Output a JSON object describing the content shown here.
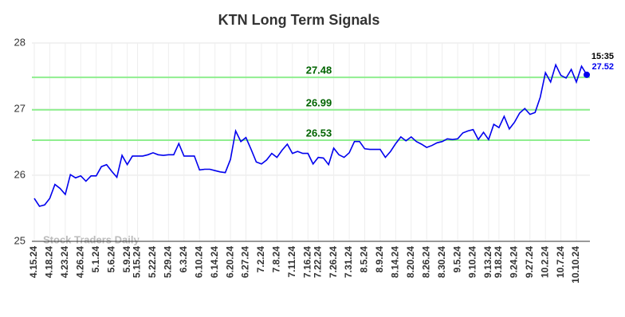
{
  "chart_data": {
    "type": "line",
    "title": "KTN Long Term Signals",
    "watermark": "Stock Traders Daily",
    "categories": [
      "4.15.24",
      null,
      null,
      "4.18.24",
      null,
      null,
      "4.23.24",
      null,
      null,
      "4.26.24",
      null,
      null,
      "5.1.24",
      null,
      null,
      "5.6.24",
      null,
      null,
      "5.9.24",
      null,
      "5.15.24",
      null,
      null,
      "5.22.24",
      null,
      null,
      "5.29.24",
      null,
      null,
      "6.3.24",
      null,
      null,
      "6.10.24",
      null,
      null,
      "6.14.24",
      null,
      null,
      "6.20.24",
      null,
      null,
      "6.27.24",
      null,
      null,
      "7.2.24",
      null,
      null,
      "7.8.24",
      null,
      null,
      "7.11.24",
      null,
      null,
      "7.16.24",
      null,
      "7.22.24",
      null,
      null,
      "7.26.24",
      null,
      null,
      "7.31.24",
      null,
      null,
      "8.5.24",
      null,
      null,
      "8.9.24",
      null,
      null,
      "8.14.24",
      null,
      null,
      "8.20.24",
      null,
      null,
      "8.26.24",
      null,
      null,
      "8.30.24",
      null,
      null,
      "9.5.24",
      null,
      null,
      "9.10.24",
      null,
      null,
      "9.13.24",
      null,
      "9.18.24",
      null,
      null,
      "9.24.24",
      null,
      null,
      "9.27.24",
      null,
      null,
      "10.2.24",
      null,
      null,
      "10.7.24",
      null,
      null,
      "10.10.24",
      null,
      null
    ],
    "values": [
      25.65,
      25.53,
      25.55,
      25.65,
      25.86,
      25.8,
      25.71,
      26.01,
      25.96,
      25.99,
      25.91,
      25.99,
      25.99,
      26.13,
      26.16,
      26.06,
      25.97,
      26.3,
      26.16,
      26.29,
      26.29,
      26.29,
      26.31,
      26.34,
      26.31,
      26.3,
      26.31,
      26.31,
      26.48,
      26.29,
      26.29,
      26.29,
      26.08,
      26.09,
      26.09,
      26.07,
      26.05,
      26.04,
      26.24,
      26.67,
      26.51,
      26.57,
      26.39,
      26.2,
      26.17,
      26.23,
      26.33,
      26.27,
      26.38,
      26.47,
      26.33,
      26.36,
      26.33,
      26.33,
      26.17,
      26.27,
      26.26,
      26.16,
      26.41,
      26.31,
      26.27,
      26.34,
      26.51,
      26.51,
      26.4,
      26.39,
      26.39,
      26.39,
      26.27,
      26.36,
      26.48,
      26.58,
      26.52,
      26.58,
      26.51,
      26.47,
      26.42,
      26.45,
      26.49,
      26.51,
      26.55,
      26.54,
      26.55,
      26.64,
      26.67,
      26.69,
      26.54,
      26.65,
      26.54,
      26.77,
      26.72,
      26.89,
      26.7,
      26.8,
      26.94,
      27.01,
      26.92,
      26.95,
      27.18,
      27.55,
      27.41,
      27.67,
      27.51,
      27.47,
      27.6,
      27.41,
      27.65,
      27.52
    ],
    "color": "#0000ee",
    "last_time": "15:35",
    "levels": [
      27.48,
      26.99,
      26.53
    ],
    "level_color": "#90ee90",
    "level_label_color": "#006400",
    "ylim": [
      25,
      28
    ],
    "yticks": [
      25,
      26,
      27,
      28
    ],
    "grid": true
  }
}
